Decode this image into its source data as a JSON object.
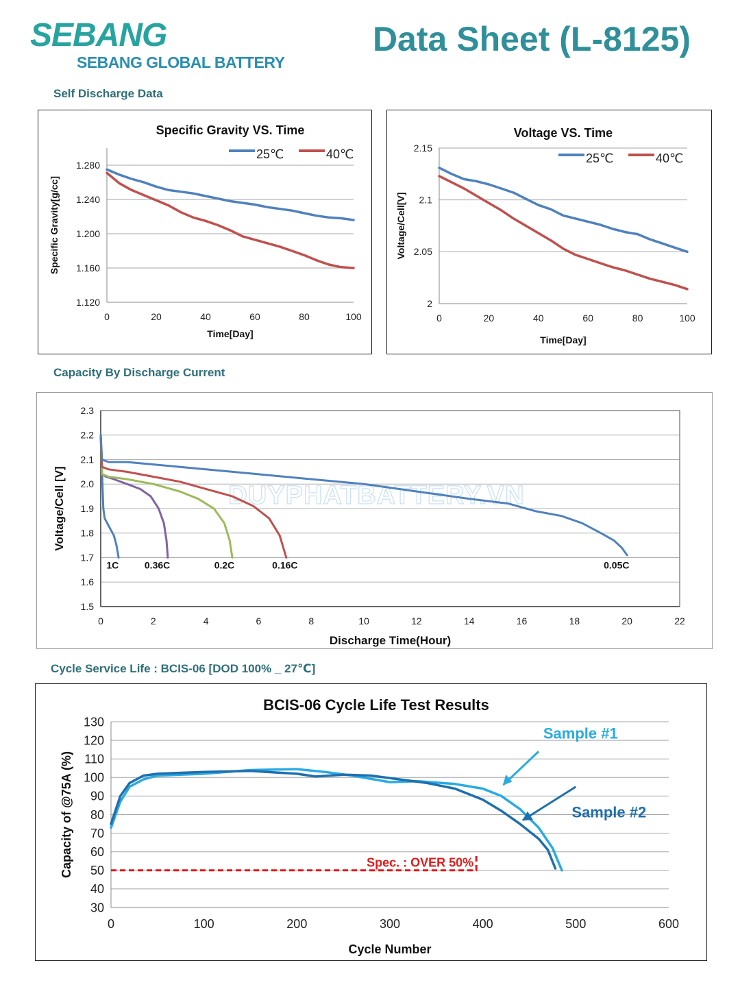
{
  "header": {
    "logo_text": "SEBANG",
    "logo_subtitle": "SEBANG GLOBAL BATTERY",
    "title": "Data Sheet (L-8125)"
  },
  "sections": {
    "self_discharge": "Self Discharge Data",
    "capacity": "Capacity By Discharge Current",
    "cycle": "Cycle Service Life : BCIS-06   [DOD 100% _ 27℃]"
  },
  "watermark": "DUYPHATBATTERY.VN",
  "colors": {
    "blue": "#4f81bd",
    "red": "#c0504d",
    "green": "#9bbb59",
    "purple": "#8064a2",
    "sample1": "#29abe2",
    "sample2": "#1f6fae",
    "spec": "#e01b1b"
  },
  "chart_data": [
    {
      "type": "line",
      "title": "Specific Gravity VS. Time",
      "xlabel": "Time[Day]",
      "ylabel": "Specific Gravity[g/cc]",
      "xlim": [
        0,
        100
      ],
      "ylim": [
        1.12,
        1.3
      ],
      "xticks": [
        "0",
        "20",
        "40",
        "60",
        "80",
        "100"
      ],
      "yticks": [
        "1.120",
        "1.160",
        "1.200",
        "1.240",
        "1.280"
      ],
      "legend": "top-right",
      "series": [
        {
          "name": "25℃",
          "color": "#4f81bd",
          "x": [
            0,
            5,
            10,
            15,
            20,
            25,
            30,
            35,
            40,
            45,
            50,
            55,
            60,
            65,
            70,
            75,
            80,
            85,
            90,
            95,
            100
          ],
          "y": [
            1.275,
            1.269,
            1.264,
            1.26,
            1.255,
            1.251,
            1.249,
            1.247,
            1.244,
            1.241,
            1.238,
            1.236,
            1.234,
            1.231,
            1.229,
            1.227,
            1.224,
            1.221,
            1.219,
            1.218,
            1.216
          ]
        },
        {
          "name": "40℃",
          "color": "#c0504d",
          "x": [
            0,
            5,
            10,
            15,
            20,
            25,
            30,
            35,
            40,
            45,
            50,
            55,
            60,
            65,
            70,
            75,
            80,
            85,
            90,
            95,
            100
          ],
          "y": [
            1.271,
            1.259,
            1.251,
            1.245,
            1.239,
            1.233,
            1.225,
            1.219,
            1.215,
            1.21,
            1.204,
            1.197,
            1.193,
            1.189,
            1.185,
            1.18,
            1.175,
            1.169,
            1.164,
            1.161,
            1.16
          ]
        }
      ]
    },
    {
      "type": "line",
      "title": "Voltage VS. Time",
      "xlabel": "Time[Day]",
      "ylabel": "Voltage/Cell[V]",
      "xlim": [
        0,
        100
      ],
      "ylim": [
        2.0,
        2.15
      ],
      "xticks": [
        "0",
        "20",
        "40",
        "60",
        "80",
        "100"
      ],
      "yticks": [
        "2",
        "2.05",
        "2.1",
        "2.15"
      ],
      "legend": "top-right",
      "series": [
        {
          "name": "25℃",
          "color": "#4f81bd",
          "x": [
            0,
            5,
            10,
            15,
            20,
            25,
            30,
            35,
            40,
            45,
            50,
            55,
            60,
            65,
            70,
            75,
            80,
            85,
            90,
            95,
            100
          ],
          "y": [
            2.131,
            2.125,
            2.12,
            2.118,
            2.115,
            2.111,
            2.107,
            2.101,
            2.095,
            2.091,
            2.085,
            2.082,
            2.079,
            2.076,
            2.072,
            2.069,
            2.067,
            2.062,
            2.058,
            2.054,
            2.05
          ]
        },
        {
          "name": "40℃",
          "color": "#c0504d",
          "x": [
            0,
            5,
            10,
            15,
            20,
            25,
            30,
            35,
            40,
            45,
            50,
            55,
            60,
            65,
            70,
            75,
            80,
            85,
            90,
            95,
            100
          ],
          "y": [
            2.123,
            2.117,
            2.111,
            2.104,
            2.097,
            2.09,
            2.082,
            2.075,
            2.068,
            2.061,
            2.053,
            2.047,
            2.043,
            2.039,
            2.035,
            2.032,
            2.028,
            2.024,
            2.021,
            2.018,
            2.014
          ]
        }
      ]
    },
    {
      "type": "line",
      "title": "",
      "xlabel": "Discharge  Time(Hour)",
      "ylabel": "Voltage/Cell [V]",
      "xlim": [
        0,
        22
      ],
      "ylim": [
        1.5,
        2.3
      ],
      "xticks": [
        "0",
        "2",
        "4",
        "6",
        "8",
        "10",
        "12",
        "14",
        "16",
        "18",
        "20",
        "22"
      ],
      "yticks": [
        "1.5",
        "1.6",
        "1.7",
        "1.8",
        "1.9",
        "2.0",
        "2.1",
        "2.2",
        "2.3"
      ],
      "series": [
        {
          "name": "1C",
          "color": "#4f81bd",
          "x": [
            0,
            0.05,
            0.1,
            0.15,
            0.2,
            0.35,
            0.5,
            0.6,
            0.68
          ],
          "y": [
            2.2,
            2.05,
            1.9,
            1.86,
            1.85,
            1.82,
            1.79,
            1.75,
            1.7
          ]
        },
        {
          "name": "0.36C",
          "color": "#8064a2",
          "x": [
            0,
            0.05,
            0.2,
            0.5,
            1.0,
            1.5,
            1.9,
            2.2,
            2.4,
            2.5,
            2.55
          ],
          "y": [
            2.2,
            2.04,
            2.03,
            2.02,
            2.0,
            1.98,
            1.95,
            1.9,
            1.84,
            1.77,
            1.7
          ]
        },
        {
          "name": "0.2C",
          "color": "#9bbb59",
          "x": [
            0,
            0.05,
            0.3,
            1.0,
            2.0,
            3.0,
            3.7,
            4.3,
            4.7,
            4.9,
            5.0
          ],
          "y": [
            2.2,
            2.04,
            2.03,
            2.02,
            2.0,
            1.97,
            1.94,
            1.9,
            1.84,
            1.77,
            1.7
          ]
        },
        {
          "name": "0.16C",
          "color": "#c0504d",
          "x": [
            0,
            0.05,
            0.3,
            1.0,
            2.0,
            3.0,
            4.0,
            5.0,
            5.8,
            6.4,
            6.8,
            7.05
          ],
          "y": [
            2.2,
            2.07,
            2.06,
            2.05,
            2.03,
            2.01,
            1.98,
            1.95,
            1.91,
            1.86,
            1.79,
            1.7
          ]
        },
        {
          "name": "0.05C",
          "color": "#4f81bd",
          "x": [
            0,
            0.05,
            0.3,
            1,
            2,
            4,
            6,
            8,
            10,
            12,
            14,
            15.5,
            16.5,
            17.5,
            18.3,
            19,
            19.5,
            19.8,
            20
          ],
          "y": [
            2.2,
            2.1,
            2.09,
            2.09,
            2.08,
            2.06,
            2.04,
            2.02,
            2.0,
            1.97,
            1.94,
            1.92,
            1.89,
            1.87,
            1.84,
            1.8,
            1.77,
            1.74,
            1.71
          ]
        }
      ]
    },
    {
      "type": "line",
      "title": "BCIS-06 Cycle Life Test Results",
      "xlabel": "Cycle Number",
      "ylabel": "Capacity of @75A (%)",
      "xlim": [
        0,
        600
      ],
      "ylim": [
        30,
        130
      ],
      "xticks": [
        "0",
        "100",
        "200",
        "300",
        "400",
        "500",
        "600"
      ],
      "yticks": [
        "30",
        "40",
        "50",
        "60",
        "70",
        "80",
        "90",
        "100",
        "110",
        "120",
        "130"
      ],
      "series": [
        {
          "name": "Sample #1",
          "color": "#29abe2",
          "x": [
            0,
            10,
            20,
            35,
            50,
            100,
            150,
            200,
            230,
            260,
            300,
            330,
            370,
            400,
            420,
            440,
            460,
            475,
            485
          ],
          "y": [
            73,
            87,
            95,
            99,
            101,
            102,
            104,
            104.5,
            103,
            101,
            97.5,
            98,
            96.5,
            94,
            90,
            83,
            73,
            62,
            50
          ]
        },
        {
          "name": "Sample #2",
          "color": "#1f6fae",
          "x": [
            0,
            10,
            20,
            35,
            50,
            100,
            150,
            200,
            220,
            250,
            280,
            310,
            340,
            370,
            400,
            420,
            440,
            460,
            470,
            478
          ],
          "y": [
            75,
            90,
            97,
            101,
            102,
            103,
            103.5,
            102,
            100.5,
            101.5,
            101,
            99,
            97,
            94,
            88,
            82,
            75,
            67,
            61,
            51
          ]
        }
      ],
      "annotations": [
        {
          "text": "Sample #1",
          "x": 465,
          "y": 121
        },
        {
          "text": "Sample #2",
          "x": 503,
          "y": 100
        },
        {
          "text": "Spec. : OVER 50%",
          "x": 275,
          "y": 52,
          "line_y": 50,
          "line_x": [
            0,
            393
          ]
        }
      ]
    }
  ]
}
